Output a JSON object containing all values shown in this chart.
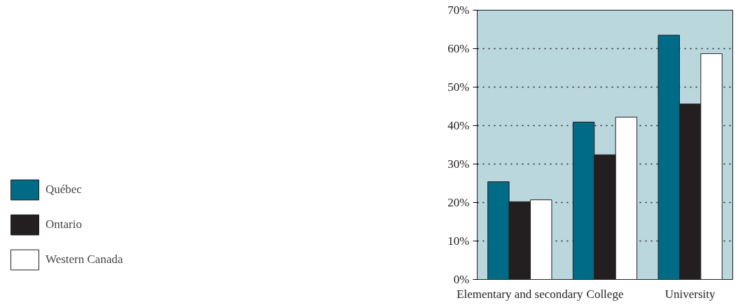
{
  "chart_data": {
    "type": "bar",
    "categories": [
      "Elementary and secondary",
      "College",
      "University"
    ],
    "series": [
      {
        "name": "Québec",
        "color": "#006b86",
        "values": [
          25.4,
          40.9,
          63.5
        ]
      },
      {
        "name": "Ontario",
        "color": "#231f20",
        "values": [
          20.2,
          32.4,
          45.6
        ]
      },
      {
        "name": "Western Canada",
        "color": "#ffffff",
        "values": [
          20.7,
          42.2,
          58.7
        ]
      }
    ],
    "ylim": [
      0,
      70
    ],
    "yticks": [
      {
        "value": 0,
        "label": "0%"
      },
      {
        "value": 10,
        "label": "10%"
      },
      {
        "value": 20,
        "label": "20%"
      },
      {
        "value": 30,
        "label": "30%"
      },
      {
        "value": 40,
        "label": "40%"
      },
      {
        "value": 50,
        "label": "50%"
      },
      {
        "value": 60,
        "label": "60%"
      },
      {
        "value": 70,
        "label": "70%"
      }
    ],
    "grid": "y",
    "legend": "left"
  }
}
